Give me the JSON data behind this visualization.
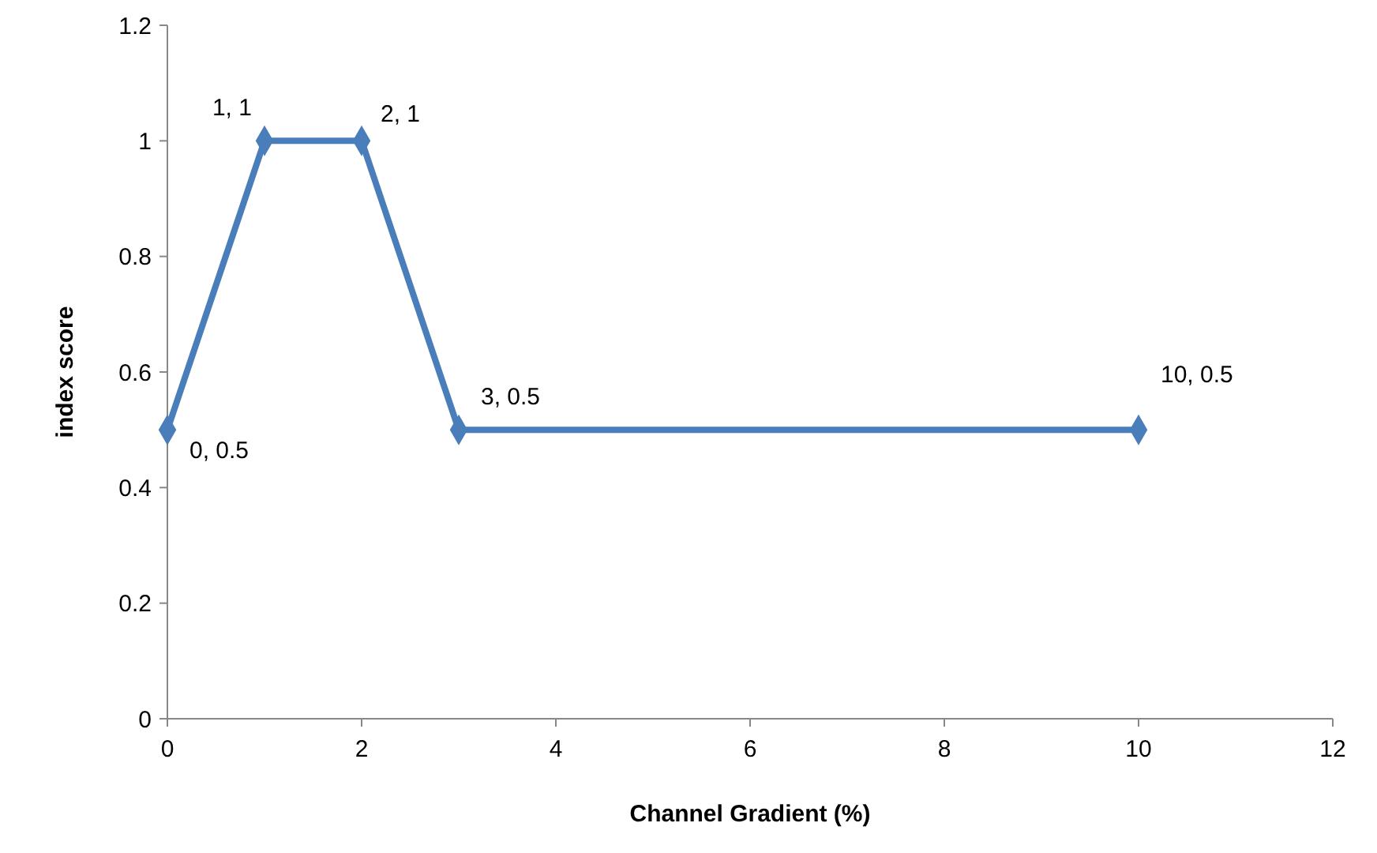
{
  "chart_data": {
    "type": "line",
    "xlabel": "Channel Gradient (%)",
    "ylabel": "index score",
    "x": [
      0,
      1,
      2,
      3,
      10
    ],
    "series": [
      {
        "color": "#4a7ebb",
        "values": [
          0.5,
          1,
          1,
          0.5,
          0.5
        ],
        "value_labels": [
          "0, 0.5",
          "1, 1",
          "2, 1",
          "3, 0.5",
          "10, 0.5"
        ]
      }
    ],
    "xlim": [
      0,
      12
    ],
    "xticks": [
      0,
      2,
      4,
      6,
      8,
      10,
      12
    ],
    "ylim": [
      0,
      1.2
    ],
    "yticks": [
      0,
      0.2,
      0.4,
      0.6,
      0.8,
      1,
      1.2
    ],
    "grid": false,
    "marker": "diamond",
    "line_style": "solid"
  }
}
